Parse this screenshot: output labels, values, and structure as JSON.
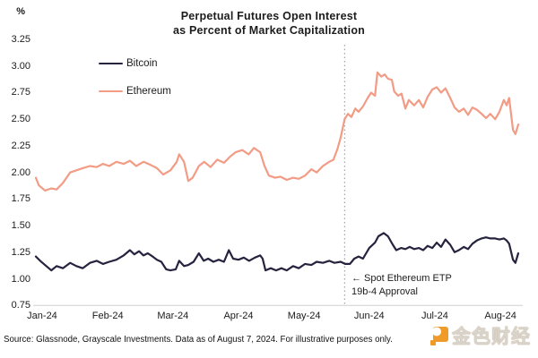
{
  "title": {
    "line1": "Perpetual Futures Open Interest",
    "line2": "as Percent of Market Capitalization"
  },
  "legend": {
    "items": [
      {
        "label": "Bitcoin"
      },
      {
        "label": "Ethereum"
      }
    ]
  },
  "annotation": {
    "line1": "← Spot Ethereum ETP",
    "line2": "19b-4 Approval"
  },
  "footer": {
    "source": "Source: Glassnode, Grayscale Investments. Data as of August 7, 2024. For illustrative purposes only."
  },
  "watermark": {
    "text": "金色财经",
    "brand_color": "#F0961E"
  },
  "colors": {
    "bitcoin": "#26233F",
    "ethereum": "#F29B85",
    "event_line": "#8f8f8f",
    "baseline": "#cfcfcf",
    "text": "#1b1b1b"
  },
  "chart_data": {
    "type": "line",
    "title": "Perpetual Futures Open Interest as Percent of Market Capitalization",
    "y_unit": "%",
    "ylim": [
      0.75,
      3.25
    ],
    "y_tick_step": 0.25,
    "y_ticks": [
      "3.25",
      "3.00",
      "2.75",
      "2.50",
      "2.25",
      "2.00",
      "1.75",
      "1.50",
      "1.25",
      "1.00",
      "0.75"
    ],
    "x_ticks": [
      {
        "label": "Jan-24",
        "f": 0.013
      },
      {
        "label": "Feb-24",
        "f": 0.149
      },
      {
        "label": "Mar-24",
        "f": 0.284
      },
      {
        "label": "Apr-24",
        "f": 0.42
      },
      {
        "label": "May-24",
        "f": 0.556
      },
      {
        "label": "Jun-24",
        "f": 0.691
      },
      {
        "label": "Jul-24",
        "f": 0.827
      },
      {
        "label": "Aug-24",
        "f": 0.963
      }
    ],
    "grid": false,
    "legend_position": "top-left",
    "event_line": {
      "f": 0.64,
      "label": "Spot Ethereum ETP 19b-4 Approval"
    },
    "series": [
      {
        "name": "Bitcoin",
        "color": "#26233F",
        "points": [
          [
            0.0,
            1.21
          ],
          [
            0.009,
            1.17
          ],
          [
            0.019,
            1.13
          ],
          [
            0.032,
            1.08
          ],
          [
            0.043,
            1.12
          ],
          [
            0.056,
            1.1
          ],
          [
            0.071,
            1.15
          ],
          [
            0.084,
            1.12
          ],
          [
            0.097,
            1.1
          ],
          [
            0.112,
            1.15
          ],
          [
            0.126,
            1.17
          ],
          [
            0.139,
            1.14
          ],
          [
            0.152,
            1.16
          ],
          [
            0.167,
            1.18
          ],
          [
            0.182,
            1.22
          ],
          [
            0.195,
            1.27
          ],
          [
            0.204,
            1.23
          ],
          [
            0.214,
            1.26
          ],
          [
            0.223,
            1.22
          ],
          [
            0.232,
            1.24
          ],
          [
            0.242,
            1.21
          ],
          [
            0.251,
            1.18
          ],
          [
            0.26,
            1.16
          ],
          [
            0.27,
            1.09
          ],
          [
            0.279,
            1.08
          ],
          [
            0.29,
            1.09
          ],
          [
            0.297,
            1.17
          ],
          [
            0.307,
            1.12
          ],
          [
            0.316,
            1.13
          ],
          [
            0.327,
            1.16
          ],
          [
            0.338,
            1.24
          ],
          [
            0.348,
            1.17
          ],
          [
            0.357,
            1.19
          ],
          [
            0.368,
            1.16
          ],
          [
            0.379,
            1.18
          ],
          [
            0.39,
            1.16
          ],
          [
            0.4,
            1.27
          ],
          [
            0.409,
            1.19
          ],
          [
            0.42,
            1.18
          ],
          [
            0.431,
            1.2
          ],
          [
            0.442,
            1.17
          ],
          [
            0.454,
            1.2
          ],
          [
            0.465,
            1.22
          ],
          [
            0.47,
            1.19
          ],
          [
            0.476,
            1.08
          ],
          [
            0.487,
            1.1
          ],
          [
            0.498,
            1.08
          ],
          [
            0.509,
            1.1
          ],
          [
            0.52,
            1.08
          ],
          [
            0.533,
            1.12
          ],
          [
            0.545,
            1.1
          ],
          [
            0.558,
            1.14
          ],
          [
            0.571,
            1.13
          ],
          [
            0.582,
            1.16
          ],
          [
            0.595,
            1.15
          ],
          [
            0.608,
            1.17
          ],
          [
            0.619,
            1.15
          ],
          [
            0.632,
            1.16
          ],
          [
            0.641,
            1.14
          ],
          [
            0.651,
            1.14
          ],
          [
            0.66,
            1.19
          ],
          [
            0.669,
            1.21
          ],
          [
            0.678,
            1.19
          ],
          [
            0.691,
            1.29
          ],
          [
            0.703,
            1.34
          ],
          [
            0.71,
            1.4
          ],
          [
            0.721,
            1.43
          ],
          [
            0.73,
            1.4
          ],
          [
            0.74,
            1.32
          ],
          [
            0.747,
            1.27
          ],
          [
            0.757,
            1.29
          ],
          [
            0.766,
            1.28
          ],
          [
            0.775,
            1.3
          ],
          [
            0.784,
            1.28
          ],
          [
            0.794,
            1.29
          ],
          [
            0.803,
            1.27
          ],
          [
            0.812,
            1.31
          ],
          [
            0.822,
            1.29
          ],
          [
            0.831,
            1.34
          ],
          [
            0.84,
            1.3
          ],
          [
            0.849,
            1.37
          ],
          [
            0.859,
            1.32
          ],
          [
            0.868,
            1.25
          ],
          [
            0.877,
            1.27
          ],
          [
            0.887,
            1.3
          ],
          [
            0.896,
            1.28
          ],
          [
            0.905,
            1.33
          ],
          [
            0.914,
            1.36
          ],
          [
            0.924,
            1.38
          ],
          [
            0.933,
            1.39
          ],
          [
            0.942,
            1.38
          ],
          [
            0.952,
            1.38
          ],
          [
            0.961,
            1.37
          ],
          [
            0.97,
            1.38
          ],
          [
            0.976,
            1.36
          ],
          [
            0.981,
            1.33
          ],
          [
            0.989,
            1.18
          ],
          [
            0.994,
            1.15
          ],
          [
            1.0,
            1.24
          ]
        ]
      },
      {
        "name": "Ethereum",
        "color": "#F29B85",
        "points": [
          [
            0.0,
            1.95
          ],
          [
            0.006,
            1.88
          ],
          [
            0.019,
            1.83
          ],
          [
            0.032,
            1.85
          ],
          [
            0.043,
            1.84
          ],
          [
            0.056,
            1.9
          ],
          [
            0.071,
            2.0
          ],
          [
            0.084,
            2.02
          ],
          [
            0.097,
            2.04
          ],
          [
            0.112,
            2.06
          ],
          [
            0.126,
            2.05
          ],
          [
            0.139,
            2.08
          ],
          [
            0.152,
            2.06
          ],
          [
            0.167,
            2.1
          ],
          [
            0.182,
            2.08
          ],
          [
            0.195,
            2.11
          ],
          [
            0.208,
            2.06
          ],
          [
            0.223,
            2.1
          ],
          [
            0.238,
            2.07
          ],
          [
            0.251,
            2.04
          ],
          [
            0.264,
            1.98
          ],
          [
            0.279,
            2.02
          ],
          [
            0.292,
            2.1
          ],
          [
            0.297,
            2.17
          ],
          [
            0.307,
            2.1
          ],
          [
            0.316,
            1.92
          ],
          [
            0.325,
            1.95
          ],
          [
            0.338,
            2.06
          ],
          [
            0.349,
            2.1
          ],
          [
            0.362,
            2.05
          ],
          [
            0.376,
            2.12
          ],
          [
            0.39,
            2.09
          ],
          [
            0.403,
            2.15
          ],
          [
            0.414,
            2.19
          ],
          [
            0.428,
            2.21
          ],
          [
            0.441,
            2.17
          ],
          [
            0.452,
            2.23
          ],
          [
            0.465,
            2.19
          ],
          [
            0.474,
            2.06
          ],
          [
            0.483,
            1.97
          ],
          [
            0.496,
            1.95
          ],
          [
            0.507,
            1.96
          ],
          [
            0.52,
            1.93
          ],
          [
            0.533,
            1.95
          ],
          [
            0.545,
            1.94
          ],
          [
            0.558,
            1.97
          ],
          [
            0.571,
            2.03
          ],
          [
            0.582,
            2.0
          ],
          [
            0.595,
            2.06
          ],
          [
            0.608,
            2.1
          ],
          [
            0.617,
            2.12
          ],
          [
            0.625,
            2.22
          ],
          [
            0.632,
            2.33
          ],
          [
            0.64,
            2.5
          ],
          [
            0.647,
            2.55
          ],
          [
            0.654,
            2.52
          ],
          [
            0.662,
            2.6
          ],
          [
            0.669,
            2.57
          ],
          [
            0.678,
            2.62
          ],
          [
            0.688,
            2.7
          ],
          [
            0.695,
            2.75
          ],
          [
            0.703,
            2.72
          ],
          [
            0.708,
            2.94
          ],
          [
            0.716,
            2.9
          ],
          [
            0.723,
            2.92
          ],
          [
            0.73,
            2.88
          ],
          [
            0.738,
            2.87
          ],
          [
            0.743,
            2.76
          ],
          [
            0.751,
            2.72
          ],
          [
            0.758,
            2.74
          ],
          [
            0.766,
            2.6
          ],
          [
            0.773,
            2.68
          ],
          [
            0.784,
            2.63
          ],
          [
            0.794,
            2.68
          ],
          [
            0.803,
            2.61
          ],
          [
            0.812,
            2.71
          ],
          [
            0.822,
            2.78
          ],
          [
            0.831,
            2.8
          ],
          [
            0.84,
            2.75
          ],
          [
            0.849,
            2.79
          ],
          [
            0.859,
            2.7
          ],
          [
            0.868,
            2.61
          ],
          [
            0.877,
            2.57
          ],
          [
            0.887,
            2.6
          ],
          [
            0.896,
            2.54
          ],
          [
            0.905,
            2.61
          ],
          [
            0.914,
            2.59
          ],
          [
            0.924,
            2.55
          ],
          [
            0.933,
            2.51
          ],
          [
            0.942,
            2.55
          ],
          [
            0.952,
            2.5
          ],
          [
            0.961,
            2.57
          ],
          [
            0.97,
            2.68
          ],
          [
            0.976,
            2.63
          ],
          [
            0.981,
            2.7
          ],
          [
            0.989,
            2.4
          ],
          [
            0.994,
            2.36
          ],
          [
            1.0,
            2.45
          ]
        ]
      }
    ]
  }
}
